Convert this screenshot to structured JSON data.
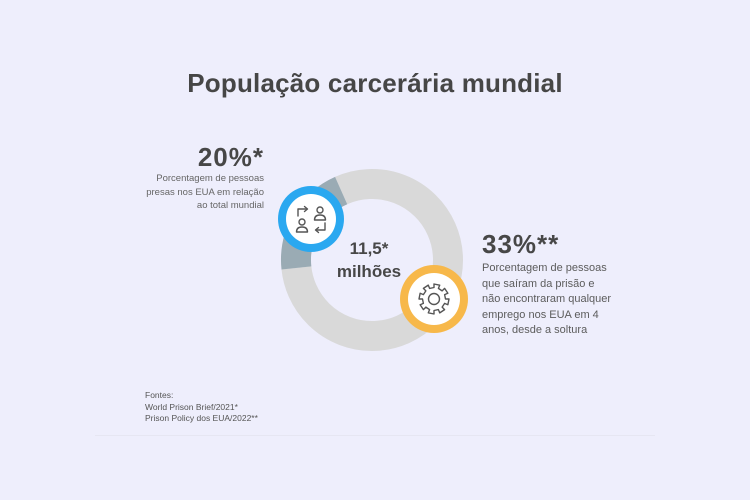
{
  "title": "População carcerária mundial",
  "left_stat": {
    "value": "20%*",
    "description": "Porcentagem de pessoas presas nos EUA em relação ao total mundial"
  },
  "right_stat": {
    "value": "33%**",
    "description": "Porcentagem de pessoas que saíram da prisão e não encontraram qualquer emprego nos EUA em 4 anos, desde a soltura"
  },
  "center": {
    "line1": "11,5*",
    "line2": "milhões"
  },
  "sources": {
    "heading": "Fontes:",
    "line1": "World Prison Brief/2021*",
    "line2": "Prison Policy dos EUA/2022**"
  },
  "icons": {
    "left": "people-exchange-icon",
    "right": "gear-icon"
  },
  "colors": {
    "background": "#eeeefc",
    "ring_dark": "#9aabb4",
    "ring_light": "#d9d9d9",
    "accent_blue": "#2aa8f0",
    "accent_yellow": "#f7b84a"
  },
  "chart_data": {
    "type": "pie",
    "segments": [
      {
        "label": "20%*",
        "value": 20,
        "color": "#9aabb4"
      },
      {
        "label": "",
        "value": 80,
        "color": "#d9d9d9"
      }
    ],
    "center_label": "11,5* milhões"
  }
}
